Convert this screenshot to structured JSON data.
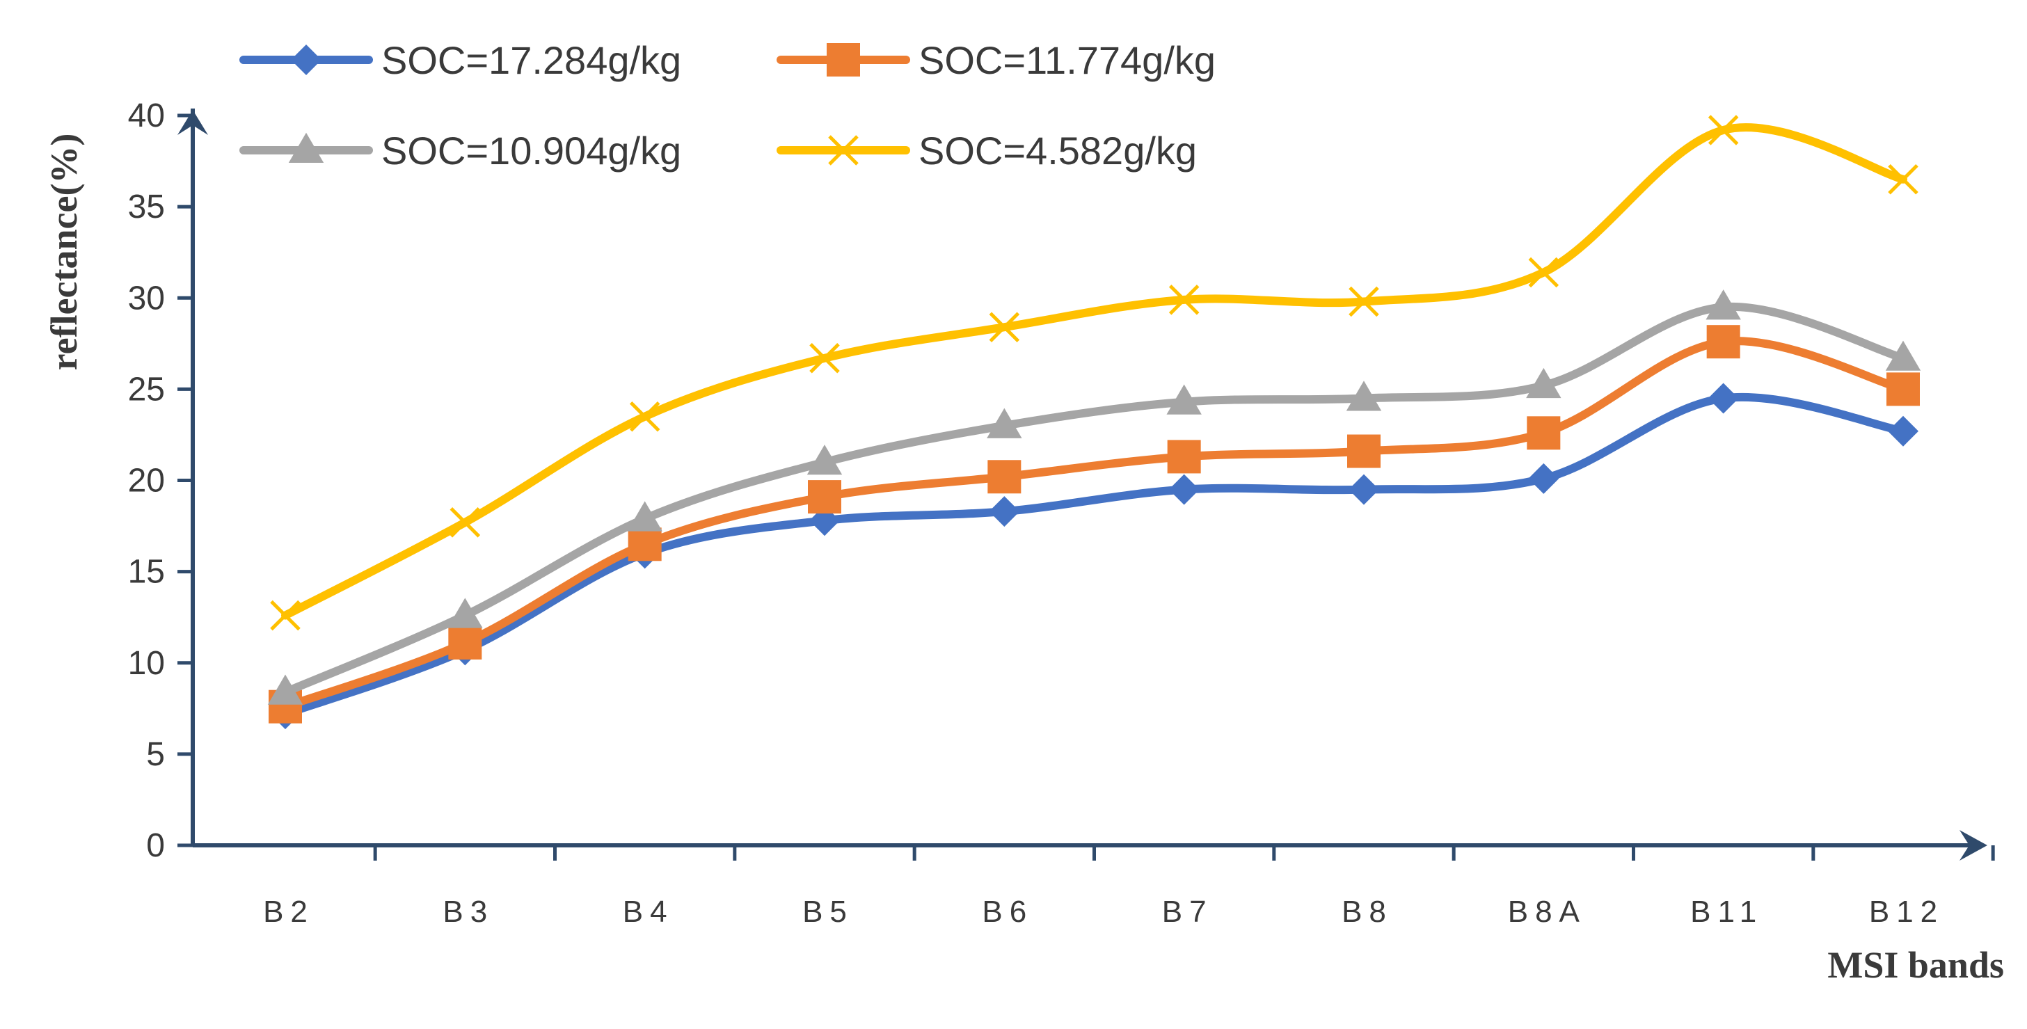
{
  "chart_data": {
    "type": "line",
    "title": "",
    "xlabel": "MSI bands",
    "ylabel": "reflectance(%)",
    "ylim": [
      0,
      40
    ],
    "yticks": [
      0,
      5,
      10,
      15,
      20,
      25,
      30,
      35,
      40
    ],
    "categories": [
      "B2",
      "B3",
      "B4",
      "B5",
      "B6",
      "B7",
      "B8",
      "B8A",
      "B11",
      "B12"
    ],
    "legend_position": "top",
    "series": [
      {
        "name": "SOC=17.284g/kg",
        "color": "#4472C4",
        "marker": "diamond",
        "values": [
          7.2,
          10.7,
          16.0,
          17.8,
          18.3,
          19.5,
          19.5,
          20.1,
          24.5,
          22.7
        ]
      },
      {
        "name": "SOC=11.774g/kg",
        "color": "#ED7D31",
        "marker": "square",
        "values": [
          7.6,
          11.1,
          16.5,
          19.1,
          20.2,
          21.3,
          21.6,
          22.6,
          27.6,
          25.0
        ]
      },
      {
        "name": "SOC=10.904g/kg",
        "color": "#A5A5A5",
        "marker": "triangle",
        "values": [
          8.4,
          12.6,
          17.9,
          21.0,
          23.0,
          24.3,
          24.5,
          25.2,
          29.5,
          26.7
        ]
      },
      {
        "name": "SOC=4.582g/kg",
        "color": "#FFC000",
        "marker": "x",
        "values": [
          12.6,
          17.7,
          23.5,
          26.7,
          28.4,
          29.9,
          29.8,
          31.4,
          39.2,
          36.5
        ]
      }
    ]
  }
}
